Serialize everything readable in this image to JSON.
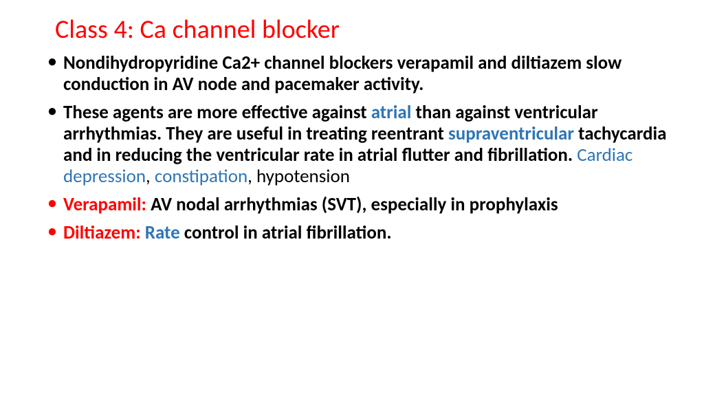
{
  "slide": {
    "title": "Class 4: Ca channel blocker",
    "colors": {
      "title": "#ff0000",
      "body": "#000000",
      "highlight_blue": "#2e75b6",
      "highlight_red": "#ff0000",
      "background": "#ffffff"
    },
    "fontsize": {
      "title": 38,
      "body": 27
    },
    "bullets": [
      {
        "bullet_color": "black",
        "runs": [
          {
            "t": "Nondihydropyridine Ca2+ channel blockers verapamil and diltiazem slow conduction in AV node and pacemaker activity.",
            "c": "black",
            "w": "bold"
          }
        ]
      },
      {
        "bullet_color": "black",
        "runs": [
          {
            "t": "These agents are more effective against ",
            "c": "black",
            "w": "bold"
          },
          {
            "t": "atrial",
            "c": "blue",
            "w": "bold"
          },
          {
            "t": " than against ventricular arrhythmias. They are useful in treating reentrant ",
            "c": "black",
            "w": "bold"
          },
          {
            "t": "supraventricular",
            "c": "blue",
            "w": "bold"
          },
          {
            "t": " tachycardia and in reducing the ventricular rate in atrial flutter and fibrillation.  ",
            "c": "black",
            "w": "bold"
          },
          {
            "t": "Cardiac depression",
            "c": "blue",
            "w": "normal"
          },
          {
            "t": ", ",
            "c": "black",
            "w": "normal"
          },
          {
            "t": "constipation",
            "c": "blue",
            "w": "normal"
          },
          {
            "t": ", hypotension",
            "c": "black",
            "w": "normal"
          }
        ]
      },
      {
        "bullet_color": "red",
        "runs": [
          {
            "t": "Verapamil: ",
            "c": "red",
            "w": "bold"
          },
          {
            "t": "AV nodal arrhythmias (SVT), especially in prophylaxis",
            "c": "black",
            "w": "bold"
          }
        ]
      },
      {
        "bullet_color": "red",
        "runs": [
          {
            "t": "Diltiazem: ",
            "c": "red",
            "w": "bold"
          },
          {
            "t": "Rate",
            "c": "blue",
            "w": "bold"
          },
          {
            "t": " control in atrial fibrillation.",
            "c": "black",
            "w": "bold"
          }
        ]
      }
    ]
  }
}
